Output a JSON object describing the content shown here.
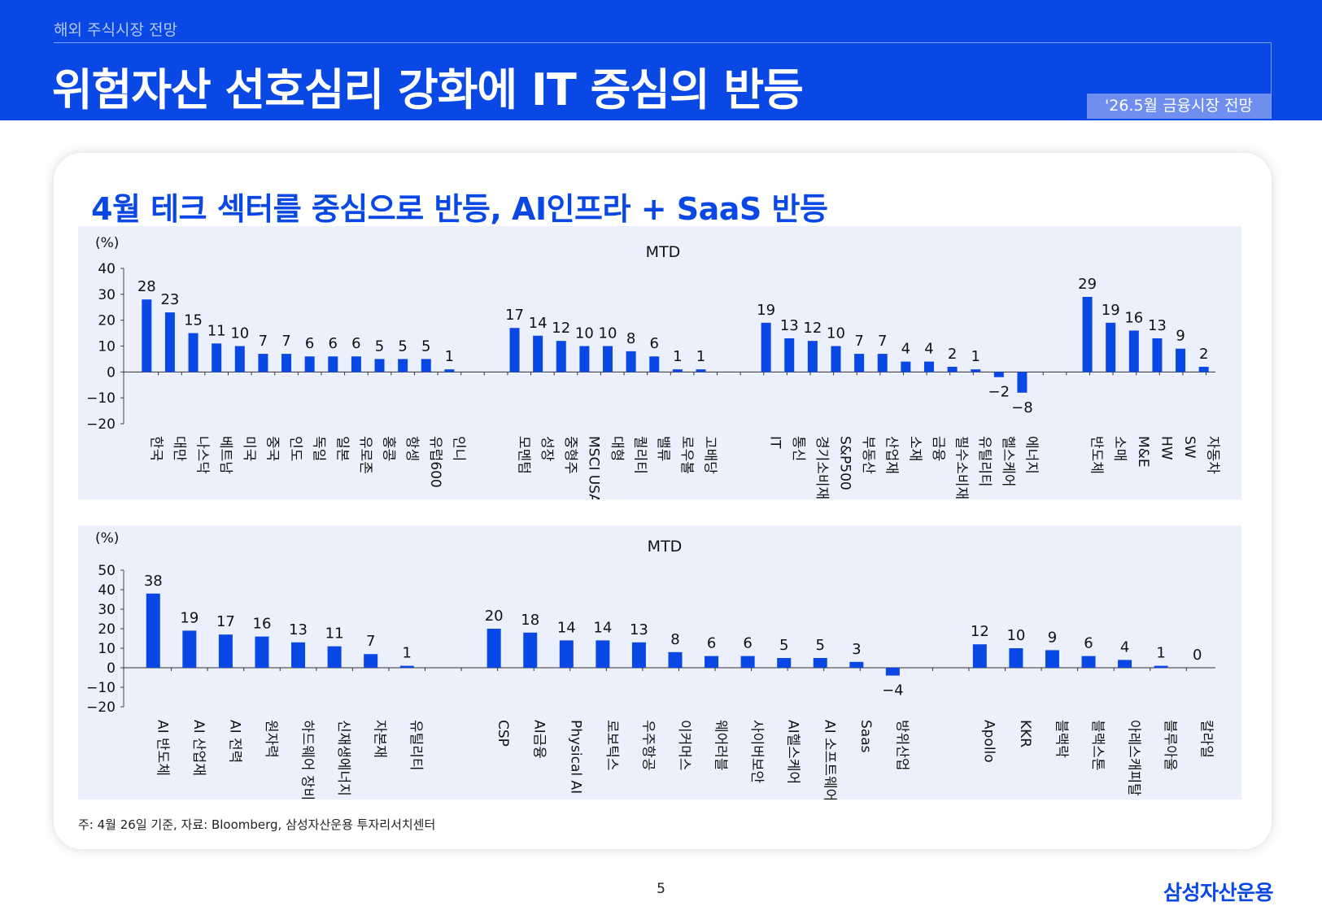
{
  "header": {
    "section": "해외 주식시장 전망",
    "title": "위험자산 선호심리 강화에 IT 중심의 반등",
    "badge": "'26.5월 금융시장 전망"
  },
  "card": {
    "subtitle": "4월 테크 섹터를 중심으로 반등, AI인프라 + SaaS 반등",
    "footnote": "주: 4월 26일 기준, 자료: Bloomberg, 삼성자산운용 투자리서치센터"
  },
  "page_number": "5",
  "logo": "삼성자산운용",
  "colors": {
    "brand": "#0a48e6",
    "bar": "#0a48e6",
    "panel": "#eceffc"
  },
  "chart_data": [
    {
      "type": "bar",
      "title": "MTD",
      "unit": "(%)",
      "ylim": [
        -20,
        40
      ],
      "yticks": [
        40,
        30,
        20,
        10,
        0,
        -10,
        -20
      ],
      "grid": false,
      "groups": [
        {
          "categories": [
            "한국",
            "대만",
            "나스닥",
            "베트남",
            "미국",
            "중국",
            "인도",
            "독일",
            "일본",
            "유로존",
            "홍콩",
            "항셍",
            "유럽600",
            "인니"
          ],
          "values": [
            28,
            23,
            15,
            11,
            10,
            7,
            7,
            6,
            6,
            6,
            5,
            5,
            5,
            1
          ]
        },
        {
          "categories": [
            "모멘텀",
            "성장",
            "중형주",
            "MSCI USA",
            "대형",
            "퀄리티",
            "밸류",
            "로우볼",
            "고배당"
          ],
          "values": [
            17,
            14,
            12,
            10,
            10,
            8,
            6,
            1,
            1
          ]
        },
        {
          "categories": [
            "IT",
            "통신",
            "경기소비재",
            "S&P500",
            "부동산",
            "산업재",
            "소재",
            "금융",
            "필수소비재",
            "유틸리티",
            "헬스케어",
            "에너지"
          ],
          "values": [
            19,
            13,
            12,
            10,
            7,
            7,
            4,
            4,
            2,
            1,
            -2,
            -8
          ]
        },
        {
          "categories": [
            "반도체",
            "소매",
            "M&E",
            "HW",
            "SW",
            "자동차"
          ],
          "values": [
            29,
            19,
            16,
            13,
            9,
            2
          ]
        }
      ]
    },
    {
      "type": "bar",
      "title": "MTD",
      "unit": "(%)",
      "ylim": [
        -20,
        50
      ],
      "yticks": [
        50,
        40,
        30,
        20,
        10,
        0,
        -10,
        -20
      ],
      "grid": false,
      "groups": [
        {
          "categories": [
            "AI 반도체",
            "AI 산업재",
            "AI 전력",
            "원자력",
            "하드웨어 장비",
            "신재생에너지",
            "자본재",
            "유틸리티"
          ],
          "values": [
            38,
            19,
            17,
            16,
            13,
            11,
            7,
            1
          ]
        },
        {
          "categories": [
            "CSP",
            "AI금융",
            "Physical AI",
            "로보틱스",
            "우주항공",
            "이커머스",
            "웨어러블",
            "사이버보안",
            "AI헬스케어",
            "AI 소프트웨어",
            "Saas",
            "방위산업"
          ],
          "values": [
            20,
            18,
            14,
            14,
            13,
            8,
            6,
            6,
            5,
            5,
            3,
            -4
          ]
        },
        {
          "categories": [
            "Apollo",
            "KKR",
            "블랙락",
            "블랙스톤",
            "아레스캐피탈",
            "블루아울",
            "칼라일"
          ],
          "values": [
            12,
            10,
            9,
            6,
            4,
            1,
            0
          ]
        }
      ]
    }
  ]
}
